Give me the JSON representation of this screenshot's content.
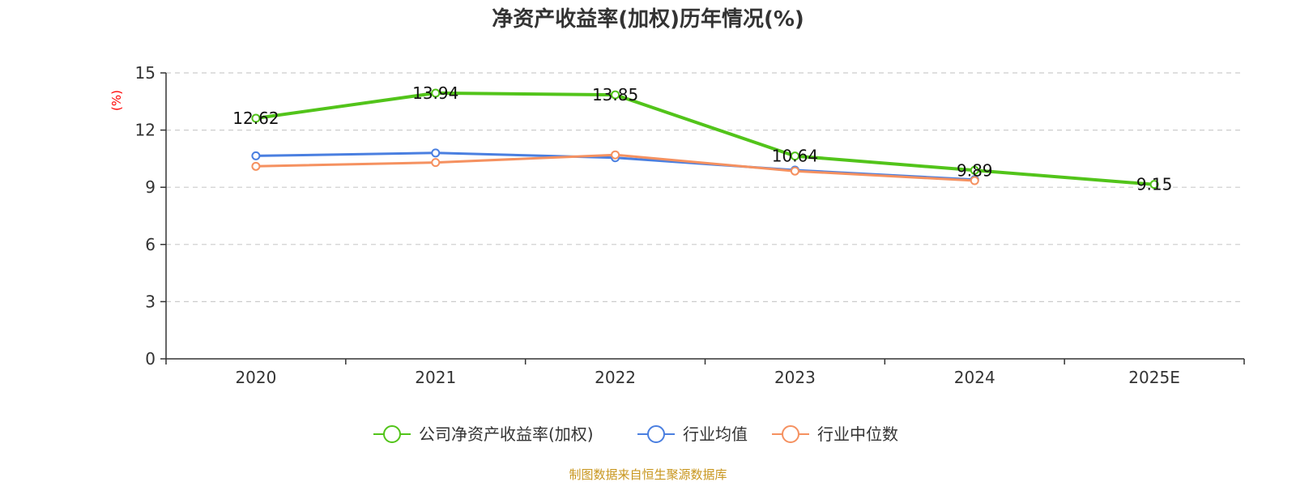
{
  "title": "净资产收益率(加权)历年情况(%)",
  "source": "制图数据来自恒生聚源数据库",
  "colors": {
    "axis": "#333333",
    "grid": "#cccccc",
    "unit": "#ff0000",
    "source": "#c8961e"
  },
  "chart_data": {
    "type": "line",
    "title": "净资产收益率(加权)历年情况(%)",
    "ylabel": "(%)",
    "xlabel": "",
    "ylim": [
      0,
      15
    ],
    "yticks": [
      0,
      3,
      6,
      9,
      12,
      15
    ],
    "grid": true,
    "legend_position": "bottom",
    "categories": [
      "2020",
      "2021",
      "2022",
      "2023",
      "2024",
      "2025E"
    ],
    "series": [
      {
        "name": "公司净资产收益率(加权)",
        "color": "#52c41a",
        "values": [
          12.62,
          13.94,
          13.85,
          10.64,
          9.89,
          9.15
        ],
        "labels": [
          "12.62",
          "13.94",
          "13.85",
          "10.64",
          "9.89",
          "9.15"
        ]
      },
      {
        "name": "行业均值",
        "color": "#4a7fe0",
        "values": [
          10.65,
          10.8,
          10.55,
          9.9,
          9.4,
          null
        ]
      },
      {
        "name": "行业中位数",
        "color": "#f59160",
        "values": [
          10.1,
          10.3,
          10.7,
          9.85,
          9.35,
          null
        ]
      }
    ]
  }
}
